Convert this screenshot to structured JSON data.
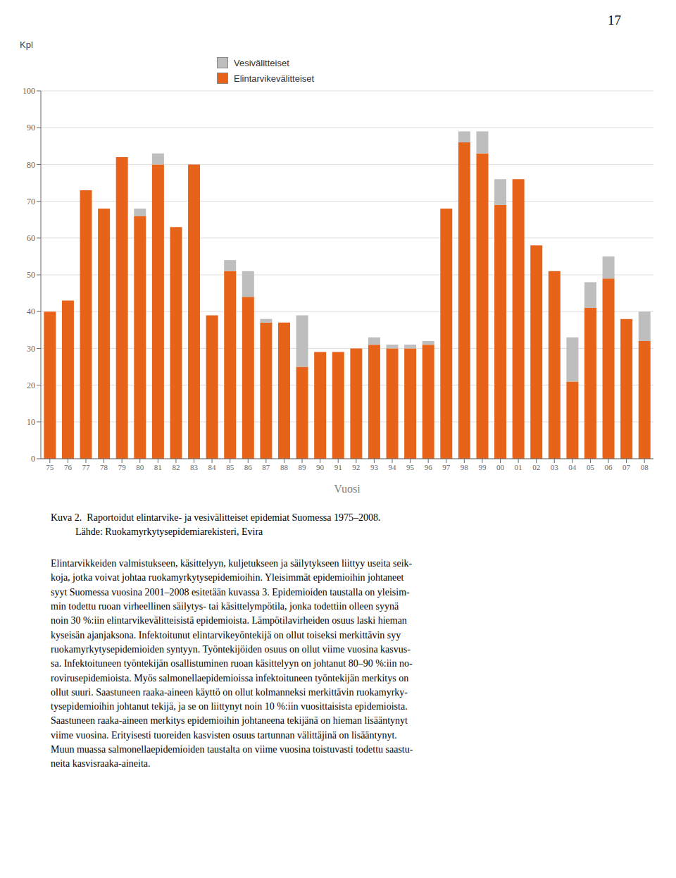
{
  "chart_data": {
    "type": "bar",
    "stacked": true,
    "categories": [
      "75",
      "76",
      "77",
      "78",
      "79",
      "80",
      "81",
      "82",
      "83",
      "84",
      "85",
      "86",
      "87",
      "88",
      "89",
      "90",
      "91",
      "92",
      "93",
      "94",
      "95",
      "96",
      "97",
      "98",
      "99",
      "00",
      "01",
      "02",
      "03",
      "04",
      "05",
      "06",
      "07",
      "08"
    ],
    "series": [
      {
        "name": "Elintarvikevälitteiset",
        "color": "#E8631A",
        "values": [
          40,
          43,
          73,
          68,
          82,
          66,
          80,
          63,
          80,
          39,
          51,
          44,
          37,
          37,
          25,
          29,
          29,
          30,
          31,
          30,
          30,
          31,
          68,
          86,
          83,
          69,
          76,
          58,
          51,
          21,
          41,
          49,
          38,
          32
        ]
      },
      {
        "name": "Vesivälitteiset",
        "color": "#BEBEBE",
        "values": [
          0,
          0,
          0,
          0,
          0,
          2,
          3,
          0,
          0,
          0,
          3,
          7,
          1,
          0,
          14,
          0,
          0,
          0,
          2,
          1,
          1,
          1,
          0,
          3,
          6,
          7,
          0,
          0,
          0,
          12,
          7,
          6,
          0,
          8
        ]
      }
    ],
    "xlabel": "Vuosi",
    "ylabel": "Kpl",
    "ylim": [
      0,
      100
    ],
    "yticks": [
      0,
      10,
      20,
      30,
      40,
      50,
      60,
      70,
      80,
      90,
      100
    ],
    "grid": true,
    "legend": "top",
    "annotations": [
      "17",
      "Kuva 2.",
      "  Raportoidut elintarvike- ja vesivälitteiset epidemiat Suomessa 1975–2008.\n          Lähde: Ruokamyrkytysepidemiarekisteri, Evira",
      "Elintarvikkeiden valmistukseen, käsittelyyn, kuljetukseen ja säilytykseen liittyy useita seik-\nkoja, jotka voivat johtaa ruokamyrkytysepidemioihin. Yleisimmät epidemioihin johtaneet\nsyyt Suomessa vuosina 2001–2008 esitetään kuvassa 3. Epidemioiden taustalla on yleisim-\nmin todettu ruoan virheellinen säilytys- tai käsittelympötila, jonka todettiin olleen syynä\nnoin 30 %:iin elintarvikevälitteisistä epidemioista. Lämpötilavirheiden osuus laski hieman\nkyseisän ajanjaksona. Infektoitunut elintarvikeyöntekijä on ollut toiseksi merkittävin syy\nruokamyrkytysepidemioiden syntyyn. Työntekijöiden osuus on ollut viime vuosina kasvus-\nsa. Infektoituneen työntekijän osallistuminen ruoan käsittelyyn on johtanut 80–90 %:iin no-\nrovirusepidemioista. Myös salmonellaepidemioissa infektoituneen työntekijän merkitys on\nollut suuri. Saastuneen raaka-aineen käyttö on ollut kolmanneksi merkittävin ruokamyrky-\ntysepidemioihin johtanut tekijä, ja se on liittynyt noin 10 %:iin vuosittaisista epidemioista.\nSaastuneen raaka-aineen merkitys epidemioihin johtaneena tekijänä on hieman lisääntynyt\nviime vuosina. Erityisesti tuoreiden kasvisten osuus tartunnan välittäjinä on lisääntynyt.\nMuun muassa salmonellaepidemioiden taustalta on viime vuosina toistuvasti todettu saastu-\nneita kasvisraaka-aineita."
    ]
  }
}
